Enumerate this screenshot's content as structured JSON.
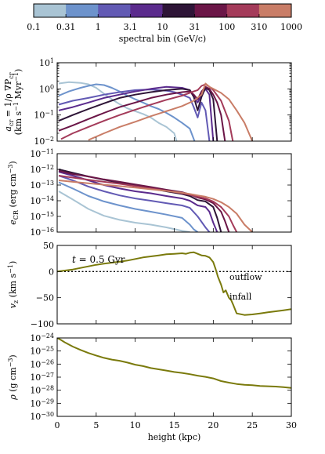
{
  "colorbar": {
    "ticks": [
      "0.1",
      "0.31",
      "1",
      "3.1",
      "10",
      "31",
      "100",
      "310",
      "1000"
    ],
    "label": "spectral bin (GeV/c)",
    "colors": [
      "#a9c4d4",
      "#6d93cc",
      "#625ab4",
      "#5b2b8d",
      "#2e1537",
      "#6b1647",
      "#a43b5a",
      "#c97d67"
    ]
  },
  "chart_data": [
    {
      "type": "line",
      "panel": "acr",
      "ylabel_parts": [
        "a",
        "cr",
        " = 1/ρ ∇P",
        "cr",
        "(km s",
        "−1",
        " Myr",
        "−1",
        ")"
      ],
      "yscale": "log",
      "ylim": [
        0.01,
        10
      ],
      "yticks": [
        {
          "v": 10,
          "b": "10",
          "e": "1"
        },
        {
          "v": 1,
          "b": "10",
          "e": "0"
        },
        {
          "v": 0.1,
          "b": "10",
          "e": "−1"
        },
        {
          "v": 0.01,
          "b": "10",
          "e": "−2"
        }
      ],
      "xlim": [
        0,
        30
      ],
      "series": [
        {
          "color": "#a9c4d4",
          "x": [
            0.2,
            1.5,
            3,
            4,
            5,
            6,
            7,
            8,
            9,
            10,
            11,
            12,
            13,
            14,
            15,
            15.3
          ],
          "y": [
            1.6,
            1.8,
            1.7,
            1.5,
            1.1,
            0.65,
            0.4,
            0.26,
            0.18,
            0.14,
            0.11,
            0.08,
            0.05,
            0.035,
            0.02,
            0.01
          ]
        },
        {
          "color": "#6d93cc",
          "x": [
            0.2,
            1.5,
            3,
            4,
            5,
            6,
            7,
            8,
            9,
            10,
            11,
            12,
            13,
            14,
            15,
            16,
            17,
            17.6
          ],
          "y": [
            0.55,
            0.8,
            1.1,
            1.3,
            1.5,
            1.4,
            1.1,
            0.8,
            0.55,
            0.4,
            0.3,
            0.22,
            0.17,
            0.12,
            0.08,
            0.05,
            0.03,
            0.01
          ]
        },
        {
          "color": "#625ab4",
          "x": [
            0.2,
            2,
            4,
            6,
            8,
            10,
            12,
            14,
            15,
            16,
            17,
            17.5,
            18,
            18.5,
            19,
            19.5
          ],
          "y": [
            0.25,
            0.35,
            0.45,
            0.6,
            0.75,
            0.9,
            0.95,
            0.85,
            0.75,
            0.6,
            0.45,
            0.2,
            0.08,
            0.3,
            0.15,
            0.01
          ]
        },
        {
          "color": "#5b2b8d",
          "x": [
            0.2,
            2,
            4,
            6,
            8,
            10,
            12,
            14,
            16,
            17,
            17.5,
            18,
            18.5,
            19,
            19.5,
            20
          ],
          "y": [
            0.15,
            0.2,
            0.3,
            0.45,
            0.6,
            0.8,
            1.0,
            1.2,
            1.1,
            0.9,
            0.5,
            0.3,
            0.6,
            1.0,
            0.6,
            0.01
          ]
        },
        {
          "color": "#2e1537",
          "x": [
            0.2,
            2,
            4,
            6,
            8,
            10,
            12,
            14,
            16,
            17,
            17.5,
            18,
            18.5,
            19,
            19.5,
            20,
            20.5
          ],
          "y": [
            0.06,
            0.1,
            0.17,
            0.28,
            0.45,
            0.6,
            0.75,
            0.9,
            1.0,
            0.9,
            0.5,
            0.15,
            0.5,
            1.1,
            0.9,
            0.4,
            0.01
          ]
        },
        {
          "color": "#6b1647",
          "x": [
            0.2,
            2,
            4,
            6,
            8,
            10,
            12,
            14,
            16,
            17,
            17.5,
            18,
            18.5,
            19,
            19.5,
            20,
            20.5,
            21,
            21.5
          ],
          "y": [
            0.025,
            0.04,
            0.07,
            0.12,
            0.2,
            0.3,
            0.45,
            0.6,
            0.75,
            0.8,
            0.6,
            0.4,
            0.8,
            1.2,
            1.0,
            0.6,
            0.3,
            0.1,
            0.01
          ]
        },
        {
          "color": "#a43b5a",
          "x": [
            0.5,
            2,
            4,
            6,
            8,
            10,
            12,
            14,
            16,
            17.5,
            18,
            18.5,
            19,
            19.5,
            20,
            21,
            22,
            22.5
          ],
          "y": [
            0.012,
            0.02,
            0.035,
            0.06,
            0.1,
            0.16,
            0.25,
            0.38,
            0.55,
            0.8,
            0.9,
            1.3,
            1.5,
            1.2,
            0.9,
            0.35,
            0.06,
            0.01
          ]
        },
        {
          "color": "#c97d67",
          "x": [
            4,
            6,
            8,
            10,
            12,
            14,
            16,
            17.5,
            18.5,
            19,
            19.5,
            20,
            21,
            22,
            23,
            24,
            25
          ],
          "y": [
            0.011,
            0.02,
            0.035,
            0.055,
            0.09,
            0.14,
            0.22,
            0.35,
            0.6,
            1.6,
            1.2,
            1.0,
            0.7,
            0.4,
            0.15,
            0.05,
            0.01
          ]
        }
      ]
    },
    {
      "type": "line",
      "panel": "ecr",
      "ylabel_parts": [
        "e",
        "CR",
        " (erg cm",
        "−3",
        ")"
      ],
      "yscale": "log",
      "ylim": [
        1e-16,
        1e-11
      ],
      "yticks": [
        {
          "v": 1e-11,
          "b": "10",
          "e": "−11"
        },
        {
          "v": 1e-12,
          "b": "10",
          "e": "−12"
        },
        {
          "v": 1e-13,
          "b": "10",
          "e": "−13"
        },
        {
          "v": 1e-14,
          "b": "10",
          "e": "−14"
        },
        {
          "v": 1e-15,
          "b": "10",
          "e": "−15"
        },
        {
          "v": 1e-16,
          "b": "10",
          "e": "−16"
        }
      ],
      "xlim": [
        0,
        30
      ],
      "series": [
        {
          "color": "#a9c4d4",
          "x": [
            0.2,
            2,
            4,
            6,
            8,
            10,
            12,
            14,
            16,
            17
          ],
          "y": [
            4e-14,
            1.2e-14,
            3e-15,
            1.1e-15,
            6e-16,
            4e-16,
            3e-16,
            2e-16,
            1.2e-16,
            1e-16
          ]
        },
        {
          "color": "#6d93cc",
          "x": [
            0.2,
            2,
            4,
            6,
            8,
            10,
            12,
            14,
            16,
            17,
            17.5,
            18
          ],
          "y": [
            1.5e-13,
            6e-14,
            2e-14,
            9e-15,
            5e-15,
            3e-15,
            2e-15,
            1.3e-15,
            8e-16,
            3e-16,
            1.5e-16,
            1e-16
          ]
        },
        {
          "color": "#625ab4",
          "x": [
            0.2,
            2,
            4,
            6,
            8,
            10,
            12,
            14,
            16,
            17,
            18,
            19,
            19.5
          ],
          "y": [
            4e-13,
            2e-13,
            8e-14,
            4e-14,
            2.2e-14,
            1.4e-14,
            1e-14,
            7e-15,
            5e-15,
            3.5e-15,
            1e-15,
            2e-16,
            1e-16
          ]
        },
        {
          "color": "#5b2b8d",
          "x": [
            0.2,
            2,
            4,
            6,
            8,
            10,
            12,
            14,
            16,
            17,
            18,
            19,
            19.5,
            20,
            20.5
          ],
          "y": [
            7e-13,
            4e-13,
            2e-13,
            1e-13,
            6e-14,
            4e-14,
            3e-14,
            2e-14,
            1.4e-14,
            1e-14,
            5e-15,
            4e-15,
            2e-15,
            4e-16,
            1e-16
          ]
        },
        {
          "color": "#2e1537",
          "x": [
            0.2,
            2,
            4,
            6,
            8,
            10,
            12,
            14,
            16,
            17,
            18,
            19,
            20,
            20.5,
            21
          ],
          "y": [
            1e-12,
            6e-13,
            3.5e-13,
            2.2e-13,
            1.4e-13,
            9e-14,
            6e-14,
            4e-14,
            2.7e-14,
            2e-14,
            1.1e-14,
            9e-15,
            4e-15,
            8e-16,
            1e-16
          ]
        },
        {
          "color": "#6b1647",
          "x": [
            0.2,
            2,
            4,
            6,
            8,
            10,
            12,
            14,
            16,
            17,
            18,
            19,
            20,
            21,
            21.5,
            22
          ],
          "y": [
            8e-13,
            5e-13,
            3.5e-13,
            2.3e-13,
            1.6e-13,
            1.1e-13,
            7.5e-14,
            5e-14,
            3.5e-14,
            2.5e-14,
            1.6e-14,
            1.2e-14,
            7e-15,
            2e-15,
            5e-16,
            1e-16
          ]
        },
        {
          "color": "#a43b5a",
          "x": [
            0.2,
            2,
            4,
            6,
            8,
            10,
            12,
            14,
            16,
            17,
            18,
            19,
            20,
            21,
            22,
            22.5,
            23
          ],
          "y": [
            4e-13,
            3e-13,
            2.2e-13,
            1.6e-13,
            1.2e-13,
            8.5e-14,
            6e-14,
            4.3e-14,
            3e-14,
            2.4e-14,
            1.8e-14,
            1.4e-14,
            9e-15,
            4e-15,
            1e-15,
            3e-16,
            1e-16
          ]
        },
        {
          "color": "#c97d67",
          "x": [
            0.2,
            2,
            4,
            6,
            8,
            10,
            12,
            14,
            16,
            17,
            18,
            19,
            20,
            21,
            22,
            23,
            24,
            25
          ],
          "y": [
            2e-13,
            1.6e-13,
            1.3e-13,
            1.05e-13,
            8.5e-14,
            6.8e-14,
            5.4e-14,
            4.2e-14,
            3.2e-14,
            2.7e-14,
            2.2e-14,
            1.8e-14,
            1.3e-14,
            8e-15,
            4e-15,
            1.5e-15,
            3e-16,
            1e-16
          ]
        }
      ]
    },
    {
      "type": "line",
      "panel": "vz",
      "ylabel_parts": [
        "v",
        "z",
        " (km s",
        "−1",
        ")"
      ],
      "yscale": "linear",
      "ylim": [
        -100,
        50
      ],
      "yticks": [
        {
          "v": 50,
          "b": "50",
          "e": ""
        },
        {
          "v": 0,
          "b": "0",
          "e": ""
        },
        {
          "v": -50,
          "b": "−50",
          "e": ""
        },
        {
          "v": -100,
          "b": "−100",
          "e": ""
        }
      ],
      "xlim": [
        0,
        30
      ],
      "zero_line": 0,
      "annotations": {
        "time_prefix": "t",
        "time_value": " = 0.5 Gyr",
        "outflow": "outflow",
        "infall": "infall"
      },
      "series": [
        {
          "color": "#7a7a0c",
          "x": [
            0,
            1,
            2,
            3,
            4,
            5,
            6,
            7,
            8,
            9,
            10,
            11,
            12,
            13,
            14,
            15,
            16,
            16.5,
            17,
            17.5,
            18,
            18.5,
            19,
            19.5,
            20,
            20.3,
            20.6,
            21,
            21.3,
            21.6,
            22,
            22.3,
            22.6,
            23,
            24,
            25,
            26,
            27,
            28,
            29,
            30
          ],
          "y": [
            0,
            2,
            4,
            7,
            10,
            13,
            15,
            17,
            19,
            21,
            24,
            27,
            29,
            31,
            33,
            34,
            35,
            34,
            36,
            37,
            34,
            31,
            30,
            27,
            18,
            5,
            -10,
            -25,
            -40,
            -36,
            -50,
            -55,
            -65,
            -80,
            -83,
            -82,
            -80,
            -78,
            -76,
            -74,
            -72
          ]
        }
      ]
    },
    {
      "type": "line",
      "panel": "rho",
      "ylabel_parts": [
        "ρ",
        "",
        " (g cm",
        "−3",
        ")"
      ],
      "xlabel": "height (kpc)",
      "yscale": "log",
      "ylim": [
        1e-30,
        1e-24
      ],
      "yticks": [
        {
          "v": 1e-24,
          "b": "10",
          "e": "−24"
        },
        {
          "v": 1e-25,
          "b": "10",
          "e": "−25"
        },
        {
          "v": 1e-26,
          "b": "10",
          "e": "−26"
        },
        {
          "v": 1e-27,
          "b": "10",
          "e": "−27"
        },
        {
          "v": 1e-28,
          "b": "10",
          "e": "−28"
        },
        {
          "v": 1e-29,
          "b": "10",
          "e": "−29"
        },
        {
          "v": 1e-30,
          "b": "10",
          "e": "−30"
        }
      ],
      "xlim": [
        0,
        30
      ],
      "xticks": [
        "0",
        "5",
        "10",
        "15",
        "20",
        "25",
        "30"
      ],
      "series": [
        {
          "color": "#7a7a0c",
          "x": [
            0,
            0.5,
            1,
            2,
            3,
            4,
            5,
            6,
            7,
            8,
            9,
            10,
            11,
            12,
            13,
            14,
            15,
            16,
            17,
            18,
            19,
            20,
            21,
            22,
            23,
            24,
            25,
            26,
            27,
            28,
            29,
            30
          ],
          "y": [
            1e-24,
            7e-25,
            4.5e-25,
            2.2e-25,
            1.2e-25,
            7e-26,
            4.5e-26,
            3e-26,
            2.2e-26,
            1.8e-26,
            1.3e-26,
            9e-27,
            7e-27,
            5e-27,
            4e-27,
            3.2e-27,
            2.5e-27,
            2.1e-27,
            1.7e-27,
            1.3e-27,
            1.05e-27,
            8e-28,
            5e-28,
            3.8e-28,
            3e-28,
            2.6e-28,
            2.4e-28,
            2.1e-28,
            2e-28,
            1.9e-28,
            1.7e-28,
            1.5e-28
          ]
        }
      ]
    }
  ]
}
